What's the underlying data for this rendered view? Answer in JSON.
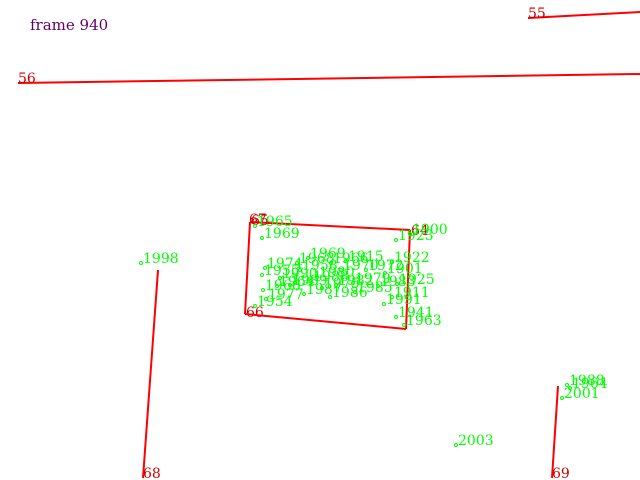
{
  "frame_label": "frame 940",
  "colors": {
    "line": "#ff0000",
    "line_label": "#cc0000",
    "point": "#00ff00",
    "frame_text": "#660066"
  },
  "lines": [
    {
      "id": "55",
      "label": "55"
    },
    {
      "id": "56",
      "label": "56"
    },
    {
      "id": "67",
      "label": "67"
    },
    {
      "id": "66",
      "label": "66"
    },
    {
      "id": "64",
      "label": "64"
    },
    {
      "id": "65",
      "label": "65"
    },
    {
      "id": "68",
      "label": "68"
    },
    {
      "id": "69",
      "label": "69"
    }
  ],
  "points": [
    "1965",
    "1969",
    "1923",
    "1900",
    "1998",
    "1922",
    "1901",
    "1925",
    "1911",
    "1941",
    "1963",
    "1969",
    "1974",
    "1968",
    "1966",
    "1955",
    "1958",
    "1990",
    "1988",
    "1975",
    "1966",
    "1964",
    "1954",
    "1987",
    "1986",
    "1985",
    "1983",
    "1977",
    "1989",
    "2001",
    "1964",
    "1988",
    "2003",
    "1970",
    "1979",
    "1972",
    "1915",
    "1982",
    "1991",
    "1980"
  ]
}
